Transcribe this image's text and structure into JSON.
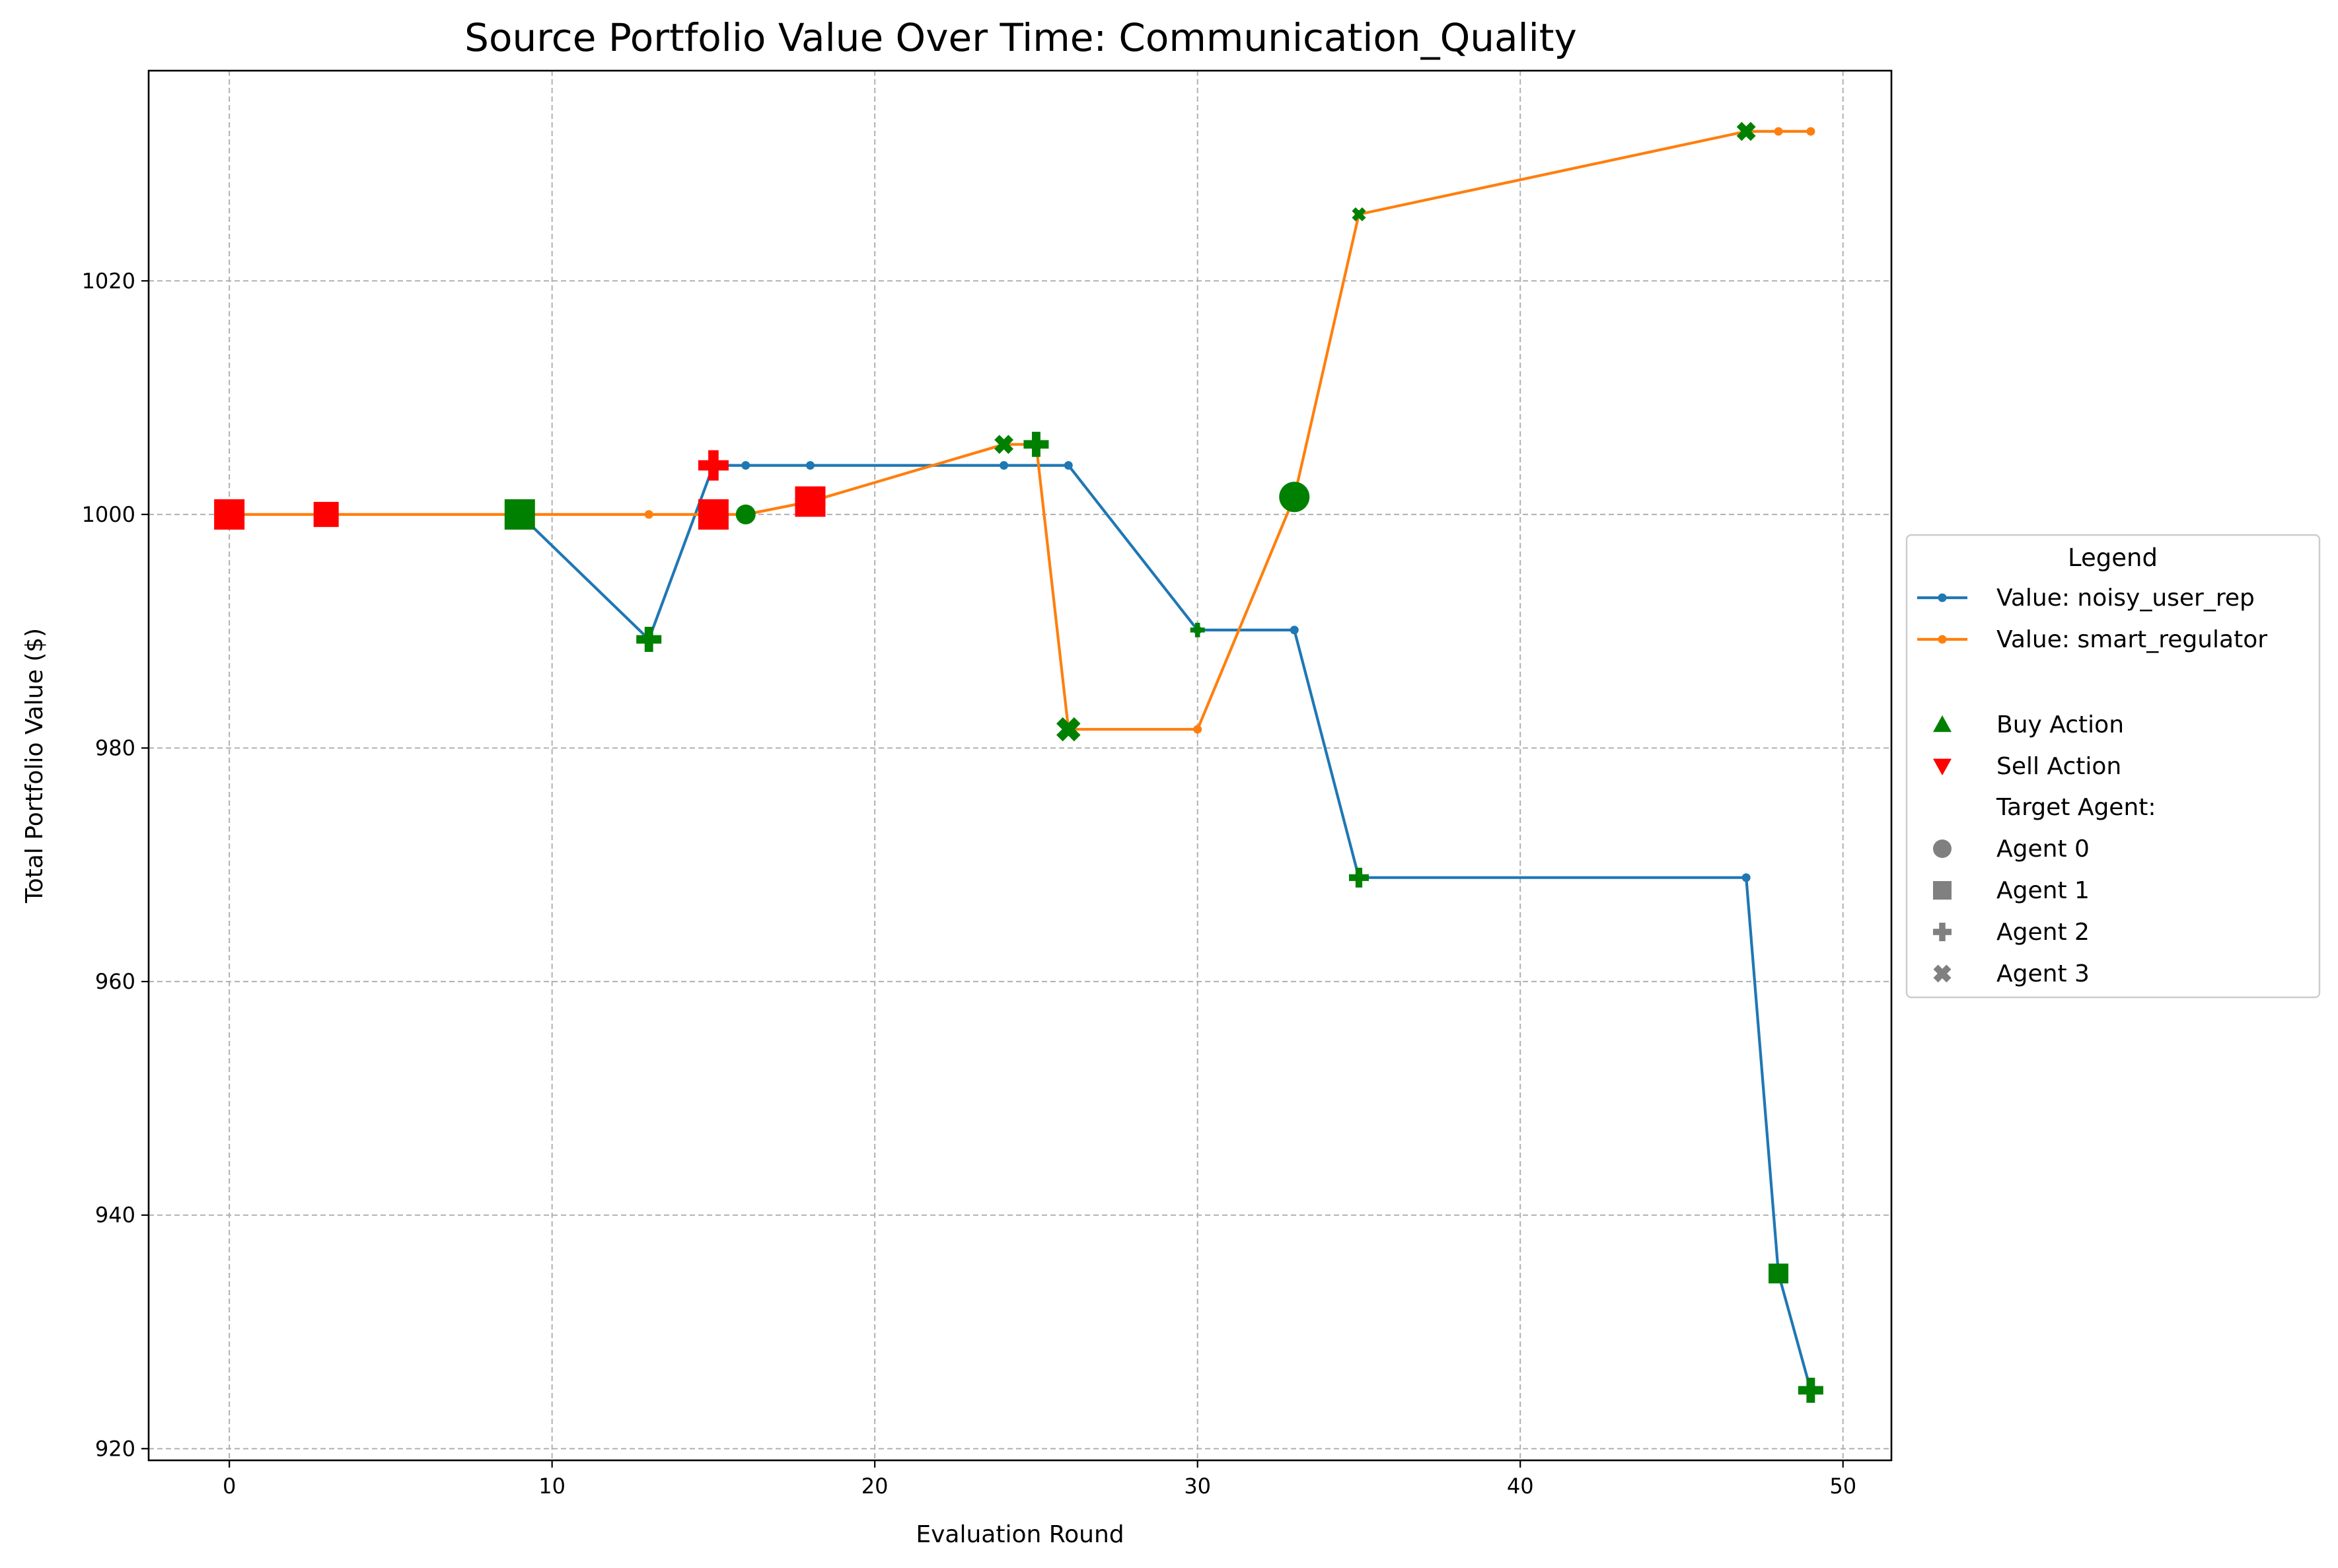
{
  "chart_data": {
    "type": "line",
    "title": "Source Portfolio Value Over Time: Communication_Quality",
    "xlabel": "Evaluation Round",
    "ylabel": "Total Portfolio Value ($)",
    "xlim": [
      -2.5,
      51.5
    ],
    "ylim": [
      919,
      1038
    ],
    "xticks": [
      0,
      10,
      20,
      30,
      40,
      50
    ],
    "yticks": [
      920,
      940,
      960,
      980,
      1000,
      1020
    ],
    "grid": true,
    "colors": {
      "noisy_user_rep": "#1f77b4",
      "smart_regulator": "#ff7f0e",
      "buy": "#008000",
      "sell": "#ff0000"
    },
    "series": [
      {
        "name": "Value: noisy_user_rep",
        "color": "#1f77b4",
        "x": [
          9,
          13,
          15,
          16,
          18,
          24,
          26,
          30,
          33,
          35,
          47,
          48,
          49
        ],
        "y": [
          1000,
          989.3,
          1004.2,
          1004.2,
          1004.2,
          1004.2,
          1004.2,
          990.1,
          990.1,
          968.9,
          968.9,
          935,
          925
        ]
      },
      {
        "name": "Value: smart_regulator",
        "color": "#ff7f0e",
        "x": [
          0,
          3,
          9,
          13,
          15,
          16,
          18,
          24,
          25,
          26,
          30,
          33,
          35,
          47,
          48,
          49
        ],
        "y": [
          1000,
          1000,
          1000,
          1000,
          1000,
          1000,
          1001.1,
          1006,
          1006,
          981.6,
          981.6,
          1001.5,
          1025.7,
          1032.8,
          1032.8,
          1032.8
        ]
      }
    ],
    "actions": [
      {
        "x": 0,
        "y": 1000,
        "action": "sell",
        "agent": 1,
        "size": "large"
      },
      {
        "x": 3,
        "y": 1000,
        "action": "sell",
        "agent": 1,
        "size": "medium"
      },
      {
        "x": 9,
        "y": 1000,
        "action": "buy",
        "agent": 1,
        "size": "large"
      },
      {
        "x": 13,
        "y": 989.3,
        "action": "buy",
        "agent": 2,
        "size": "medium"
      },
      {
        "x": 15,
        "y": 1004.2,
        "action": "sell",
        "agent": 2,
        "size": "large"
      },
      {
        "x": 15,
        "y": 1000,
        "action": "sell",
        "agent": 1,
        "size": "large"
      },
      {
        "x": 16,
        "y": 1000,
        "action": "buy",
        "agent": 0,
        "size": "small"
      },
      {
        "x": 18,
        "y": 1001.1,
        "action": "sell",
        "agent": 1,
        "size": "large"
      },
      {
        "x": 24,
        "y": 1006,
        "action": "buy",
        "agent": 3,
        "size": "small"
      },
      {
        "x": 25,
        "y": 1006,
        "action": "buy",
        "agent": 2,
        "size": "medium"
      },
      {
        "x": 26,
        "y": 981.6,
        "action": "buy",
        "agent": 3,
        "size": "medium"
      },
      {
        "x": 30,
        "y": 990.1,
        "action": "buy",
        "agent": 2,
        "size": "tiny"
      },
      {
        "x": 33,
        "y": 1001.5,
        "action": "buy",
        "agent": 0,
        "size": "large"
      },
      {
        "x": 35,
        "y": 1025.7,
        "action": "buy",
        "agent": 3,
        "size": "tiny"
      },
      {
        "x": 35,
        "y": 968.9,
        "action": "buy",
        "agent": 2,
        "size": "small"
      },
      {
        "x": 47,
        "y": 1032.8,
        "action": "buy",
        "agent": 3,
        "size": "small"
      },
      {
        "x": 48,
        "y": 935,
        "action": "buy",
        "agent": 1,
        "size": "small"
      },
      {
        "x": 49,
        "y": 925,
        "action": "buy",
        "agent": 2,
        "size": "medium"
      }
    ],
    "legend": {
      "title": "Legend",
      "placement": "outside-right",
      "entries": [
        {
          "type": "line",
          "label": "Value: noisy_user_rep",
          "color": "#1f77b4"
        },
        {
          "type": "line",
          "label": "Value: smart_regulator",
          "color": "#ff7f0e"
        },
        {
          "type": "blank",
          "label": ""
        },
        {
          "type": "marker",
          "shape": "triangle-up",
          "label": "Buy Action",
          "color": "#008000"
        },
        {
          "type": "marker",
          "shape": "triangle-down",
          "label": "Sell Action",
          "color": "#ff0000"
        },
        {
          "type": "text",
          "label": "Target Agent:"
        },
        {
          "type": "marker",
          "shape": "circle",
          "label": "Agent 0",
          "color": "#808080"
        },
        {
          "type": "marker",
          "shape": "square",
          "label": "Agent 1",
          "color": "#808080"
        },
        {
          "type": "marker",
          "shape": "plus",
          "label": "Agent 2",
          "color": "#808080"
        },
        {
          "type": "marker",
          "shape": "x",
          "label": "Agent 3",
          "color": "#808080"
        }
      ]
    }
  }
}
